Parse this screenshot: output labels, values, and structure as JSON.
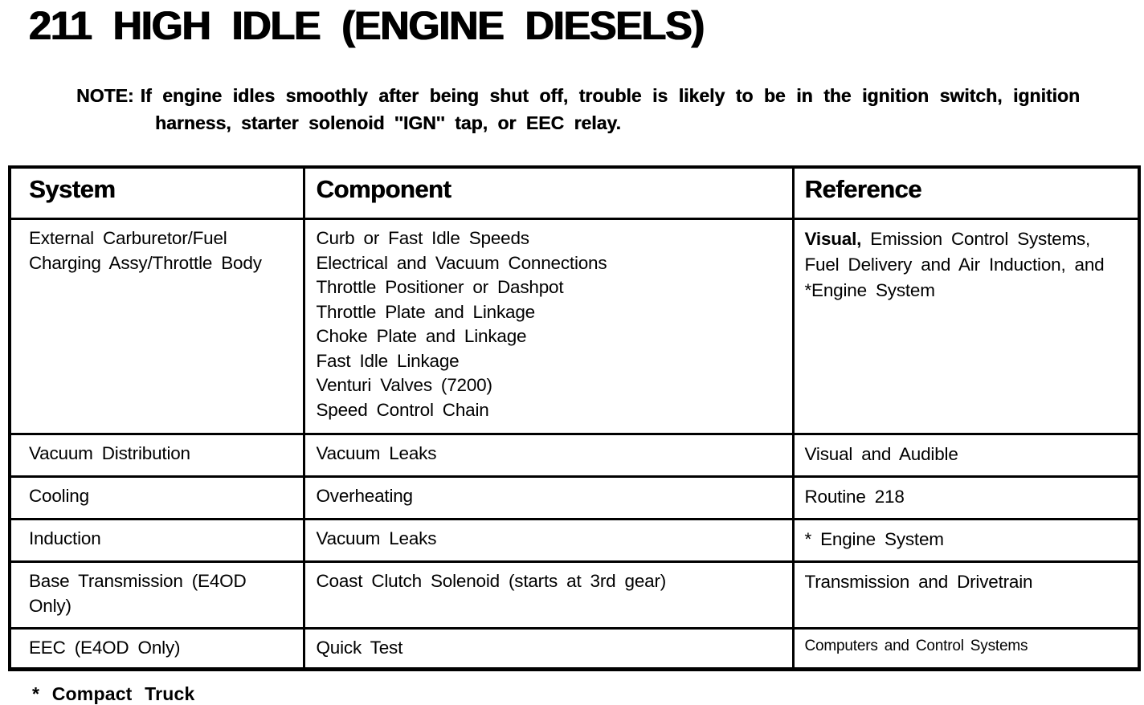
{
  "page": {
    "title": "211 HIGH IDLE (ENGINE DIESELS)",
    "note_label": "NOTE:",
    "note_text": "If engine idles smoothly after being shut off, trouble is likely to be in the ignition switch, ignition harness, starter solenoid ''IGN'' tap, or EEC relay.",
    "footnote": "* Compact Truck"
  },
  "table": {
    "headers": [
      "System",
      "Component",
      "Reference"
    ],
    "rows": [
      {
        "system": "External Carburetor/Fuel Charging Assy/Throttle Body",
        "components": [
          "Curb or Fast Idle Speeds",
          "Electrical and Vacuum Connections",
          "Throttle Positioner or Dashpot",
          "Throttle Plate and Linkage",
          "Choke Plate and Linkage",
          "Fast Idle Linkage",
          "Venturi Valves (7200)",
          "Speed Control Chain"
        ],
        "reference_bold": "Visual,",
        "reference_rest": " Emission Control Systems, Fuel Delivery and Air Induction, and *Engine System"
      },
      {
        "system": "Vacuum Distribution",
        "components": [
          "Vacuum Leaks"
        ],
        "reference": "Visual and Audible"
      },
      {
        "system": "Cooling",
        "components": [
          "Overheating"
        ],
        "reference": "Routine 218"
      },
      {
        "system": "Induction",
        "components": [
          "Vacuum Leaks"
        ],
        "reference": "* Engine System"
      },
      {
        "system": "Base Transmission (E4OD Only)",
        "components": [
          "Coast Clutch Solenoid (starts at 3rd gear)"
        ],
        "reference": "Transmission and Drivetrain"
      },
      {
        "system": "EEC (E4OD Only)",
        "components": [
          "Quick Test"
        ],
        "reference": "Computers and Control Systems"
      }
    ]
  }
}
